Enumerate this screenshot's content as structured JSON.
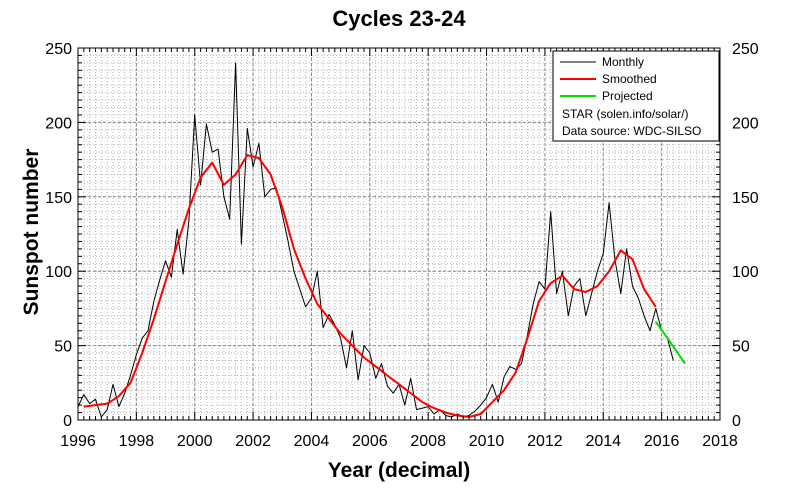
{
  "chart_data": {
    "type": "line",
    "title": "Cycles 23-24",
    "xlabel": "Year (decimal)",
    "ylabel": "Sunspot number",
    "xlim": [
      1996,
      2018
    ],
    "ylim": [
      0,
      250
    ],
    "x_ticks": [
      1996,
      1998,
      2000,
      2002,
      2004,
      2006,
      2008,
      2010,
      2012,
      2014,
      2016,
      2018
    ],
    "y_ticks": [
      0,
      50,
      100,
      150,
      200,
      250
    ],
    "grid": true,
    "legend_position": "top-right",
    "legend": {
      "entries": [
        {
          "name": "Monthly",
          "color": "#000000"
        },
        {
          "name": "Smoothed",
          "color": "#ff0000"
        },
        {
          "name": "Projected",
          "color": "#00dd00"
        }
      ],
      "notes": [
        "STAR (solen.info/solar/)",
        "Data source: WDC-SILSO"
      ]
    },
    "series": [
      {
        "name": "Monthly",
        "color": "#000000",
        "x": [
          1996.0,
          1996.2,
          1996.4,
          1996.6,
          1996.8,
          1997.0,
          1997.2,
          1997.4,
          1997.6,
          1997.8,
          1998.0,
          1998.2,
          1998.4,
          1998.6,
          1998.8,
          1999.0,
          1999.2,
          1999.4,
          1999.6,
          1999.8,
          2000.0,
          2000.2,
          2000.4,
          2000.6,
          2000.8,
          2001.0,
          2001.2,
          2001.4,
          2001.6,
          2001.8,
          2002.0,
          2002.2,
          2002.4,
          2002.6,
          2002.8,
          2003.0,
          2003.2,
          2003.4,
          2003.6,
          2003.8,
          2004.0,
          2004.2,
          2004.4,
          2004.6,
          2004.8,
          2005.0,
          2005.2,
          2005.4,
          2005.6,
          2005.8,
          2006.0,
          2006.2,
          2006.4,
          2006.6,
          2006.8,
          2007.0,
          2007.2,
          2007.4,
          2007.6,
          2007.8,
          2008.0,
          2008.2,
          2008.4,
          2008.6,
          2008.8,
          2009.0,
          2009.2,
          2009.4,
          2009.6,
          2009.8,
          2010.0,
          2010.2,
          2010.4,
          2010.6,
          2010.8,
          2011.0,
          2011.2,
          2011.4,
          2011.6,
          2011.8,
          2012.0,
          2012.2,
          2012.4,
          2012.6,
          2012.8,
          2013.0,
          2013.2,
          2013.4,
          2013.6,
          2013.8,
          2014.0,
          2014.2,
          2014.4,
          2014.6,
          2014.8,
          2015.0,
          2015.2,
          2015.4,
          2015.6,
          2015.8,
          2016.0,
          2016.2,
          2016.4
        ],
        "values": [
          9,
          17,
          11,
          14,
          2,
          7,
          24,
          9,
          18,
          30,
          44,
          55,
          60,
          80,
          94,
          107,
          96,
          128,
          98,
          134,
          205,
          158,
          199,
          180,
          182,
          150,
          135,
          240,
          118,
          196,
          170,
          186,
          150,
          155,
          156,
          138,
          120,
          100,
          88,
          76,
          82,
          100,
          62,
          71,
          64,
          55,
          35,
          60,
          27,
          50,
          45,
          28,
          38,
          23,
          18,
          24,
          10,
          28,
          7,
          8,
          9,
          4,
          7,
          3,
          2,
          4,
          2,
          3,
          6,
          10,
          15,
          24,
          12,
          29,
          36,
          34,
          38,
          57,
          78,
          93,
          88,
          140,
          85,
          100,
          70,
          90,
          95,
          70,
          85,
          100,
          112,
          146,
          108,
          85,
          115,
          90,
          82,
          70,
          60,
          75,
          60,
          55,
          40
        ]
      },
      {
        "name": "Smoothed",
        "color": "#ff0000",
        "x": [
          1996.2,
          1996.6,
          1997.0,
          1997.4,
          1997.8,
          1998.2,
          1998.6,
          1999.0,
          1999.4,
          1999.8,
          2000.2,
          2000.6,
          2001.0,
          2001.4,
          2001.8,
          2002.2,
          2002.6,
          2003.0,
          2003.4,
          2003.8,
          2004.2,
          2004.6,
          2005.0,
          2005.4,
          2005.8,
          2006.2,
          2006.6,
          2007.0,
          2007.4,
          2007.8,
          2008.2,
          2008.6,
          2009.0,
          2009.4,
          2009.8,
          2010.2,
          2010.6,
          2011.0,
          2011.4,
          2011.8,
          2012.2,
          2012.6,
          2013.0,
          2013.4,
          2013.8,
          2014.2,
          2014.6,
          2015.0,
          2015.4,
          2015.8
        ],
        "values": [
          9,
          10,
          11,
          16,
          25,
          45,
          68,
          93,
          118,
          142,
          163,
          173,
          158,
          165,
          178,
          176,
          165,
          143,
          115,
          95,
          78,
          68,
          58,
          50,
          42,
          36,
          30,
          24,
          18,
          12,
          8,
          5,
          3,
          2,
          4,
          12,
          20,
          32,
          55,
          80,
          92,
          97,
          88,
          86,
          90,
          100,
          114,
          108,
          88,
          76
        ]
      },
      {
        "name": "Projected",
        "color": "#00dd00",
        "x": [
          2015.8,
          2016.2,
          2016.8
        ],
        "values": [
          66,
          55,
          38
        ]
      }
    ]
  }
}
